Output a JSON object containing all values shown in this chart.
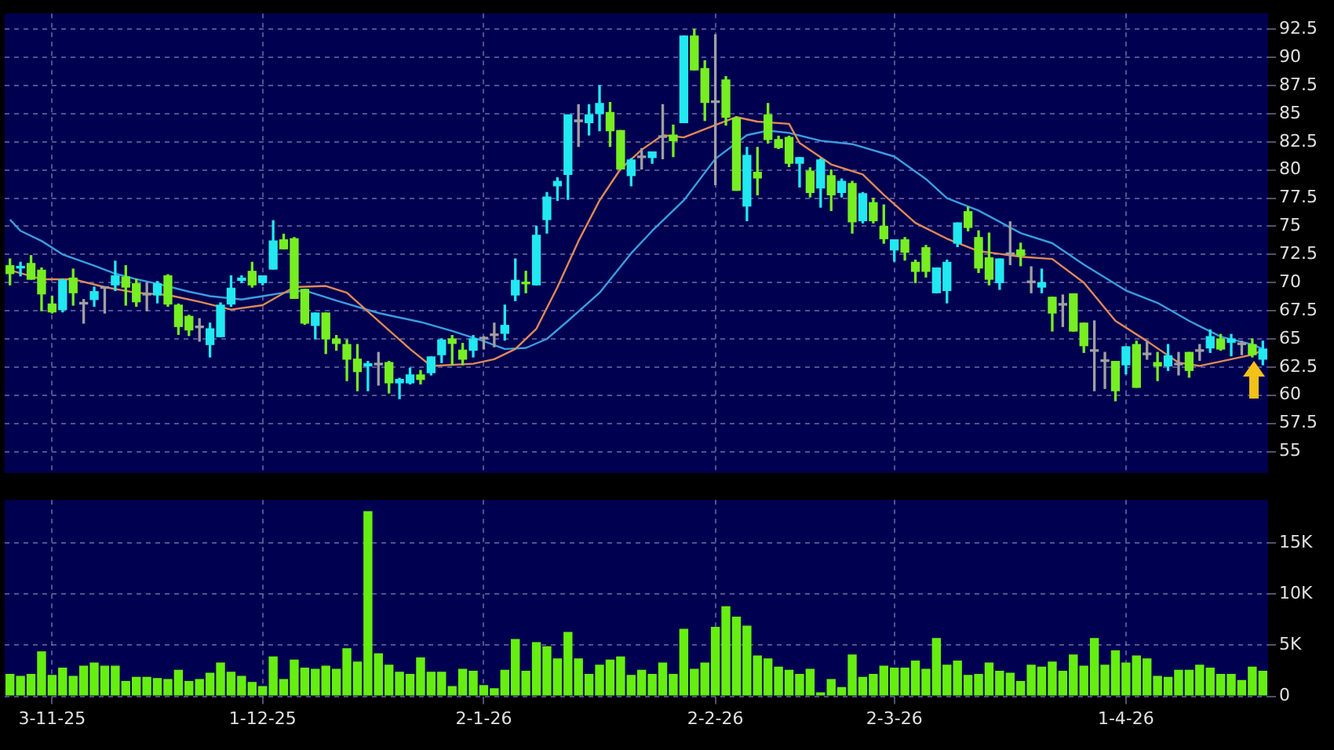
{
  "chart_data": [
    {
      "type": "candlestick",
      "tick_labels": "y",
      "grid": true,
      "categories": [
        null,
        null,
        null,
        null,
        null,
        null,
        null,
        null,
        null,
        null,
        null,
        null,
        null,
        null,
        null,
        null,
        null,
        null,
        null,
        null,
        null,
        null,
        null,
        null,
        null,
        null,
        null,
        null,
        null,
        null,
        null,
        null,
        null,
        null,
        null,
        null,
        null,
        null,
        null,
        null,
        null,
        null,
        null,
        null,
        null,
        null,
        null,
        null,
        null,
        null,
        null,
        null,
        null,
        null,
        null,
        null,
        null,
        null,
        null,
        null,
        null,
        null,
        null,
        null,
        null,
        null,
        null,
        null,
        null,
        null,
        null,
        null,
        null,
        null,
        null,
        null,
        null,
        null,
        null,
        null,
        null,
        null,
        null,
        null,
        null,
        null,
        null,
        null,
        null,
        null,
        null,
        null,
        null,
        null,
        null,
        null,
        null,
        null,
        null,
        null,
        null,
        null,
        null,
        null,
        null,
        null,
        null,
        null,
        null,
        null,
        null,
        null,
        null,
        null,
        null,
        null,
        null,
        null,
        null,
        null
      ],
      "ohlc": [
        [
          71.5,
          72.1,
          69.8,
          70.8
        ],
        [
          71.3,
          71.8,
          70.6,
          71.4
        ],
        [
          71.7,
          72.4,
          70.3,
          70.3
        ],
        [
          71.1,
          71.3,
          67.5,
          69.0
        ],
        [
          68.1,
          68.8,
          67.3,
          67.4
        ],
        [
          67.6,
          70.3,
          67.4,
          70.2
        ],
        [
          70.4,
          71.2,
          68.0,
          69.1
        ],
        [
          68.1,
          68.5,
          66.4,
          68.1
        ],
        [
          68.5,
          69.6,
          67.9,
          69.2
        ],
        [
          69.5,
          69.6,
          67.3,
          69.5
        ],
        [
          69.8,
          71.9,
          69.3,
          70.6
        ],
        [
          70.5,
          71.5,
          68.0,
          69.6
        ],
        [
          69.9,
          70.3,
          67.9,
          68.3
        ],
        [
          68.9,
          70.0,
          67.5,
          68.9
        ],
        [
          68.9,
          70.1,
          68.2,
          69.9
        ],
        [
          70.6,
          70.7,
          67.9,
          68.1
        ],
        [
          68.0,
          68.1,
          65.4,
          66.1
        ],
        [
          67.0,
          67.1,
          65.3,
          65.8
        ],
        [
          66.0,
          66.8,
          64.8,
          66.0
        ],
        [
          64.5,
          66.4,
          63.4,
          65.9
        ],
        [
          65.2,
          68.2,
          65.2,
          68.0
        ],
        [
          68.1,
          70.6,
          67.9,
          69.5
        ],
        [
          70.2,
          70.6,
          70.0,
          70.4
        ],
        [
          71.0,
          71.8,
          69.6,
          69.8
        ],
        [
          70.0,
          70.6,
          69.8,
          70.6
        ],
        [
          71.2,
          75.5,
          71.2,
          73.7
        ],
        [
          73.8,
          74.3,
          73.0,
          73.0
        ],
        [
          73.9,
          74.0,
          68.6,
          68.6
        ],
        [
          69.4,
          69.4,
          66.3,
          66.4
        ],
        [
          66.2,
          67.3,
          65.0,
          67.3
        ],
        [
          67.3,
          67.3,
          63.7,
          65.0
        ],
        [
          65.0,
          65.3,
          64.0,
          64.6
        ],
        [
          64.5,
          64.9,
          61.3,
          63.2
        ],
        [
          63.2,
          64.5,
          60.4,
          62.1
        ],
        [
          62.6,
          63.0,
          60.4,
          62.8
        ],
        [
          62.7,
          63.8,
          60.9,
          62.7
        ],
        [
          62.9,
          63.0,
          60.2,
          61.1
        ],
        [
          61.1,
          61.5,
          59.7,
          61.4
        ],
        [
          61.1,
          62.4,
          61.0,
          61.8
        ],
        [
          61.8,
          62.2,
          61.0,
          61.4
        ],
        [
          62.0,
          63.4,
          61.8,
          63.4
        ],
        [
          63.6,
          65.0,
          62.9,
          64.9
        ],
        [
          65.0,
          65.3,
          62.7,
          64.6
        ],
        [
          64.0,
          64.6,
          62.7,
          63.2
        ],
        [
          64.0,
          65.3,
          63.4,
          65.0
        ],
        [
          65.0,
          65.2,
          64.1,
          65.0
        ],
        [
          65.3,
          66.4,
          64.3,
          65.3
        ],
        [
          65.5,
          68.0,
          64.9,
          66.2
        ],
        [
          68.9,
          72.1,
          68.4,
          70.2
        ],
        [
          70.0,
          71.0,
          69.1,
          69.9
        ],
        [
          69.8,
          75.0,
          69.8,
          74.2
        ],
        [
          75.6,
          78.0,
          74.4,
          77.6
        ],
        [
          78.6,
          79.3,
          77.3,
          79.0
        ],
        [
          79.6,
          84.9,
          77.4,
          84.9
        ],
        [
          84.3,
          85.8,
          82.1,
          84.3
        ],
        [
          84.2,
          85.8,
          83.1,
          84.9
        ],
        [
          85.0,
          87.5,
          83.5,
          85.9
        ],
        [
          85.1,
          86.0,
          82.1,
          83.5
        ],
        [
          83.5,
          83.5,
          80.1,
          80.1
        ],
        [
          79.5,
          81.0,
          78.6,
          80.9
        ],
        [
          81.1,
          81.9,
          80.1,
          81.1
        ],
        [
          81.1,
          81.6,
          80.6,
          81.6
        ],
        [
          82.9,
          85.8,
          81.0,
          82.9
        ],
        [
          83.1,
          84.0,
          81.2,
          82.6
        ],
        [
          84.2,
          91.9,
          84.2,
          91.9
        ],
        [
          91.9,
          92.5,
          88.9,
          88.9
        ],
        [
          89.0,
          89.7,
          84.4,
          86.0
        ],
        [
          86.0,
          92.0,
          78.7,
          86.0
        ],
        [
          88.0,
          88.3,
          84.0,
          84.7
        ],
        [
          84.6,
          84.7,
          78.2,
          78.2
        ],
        [
          76.8,
          82.0,
          75.5,
          81.3
        ],
        [
          79.8,
          82.0,
          77.8,
          79.3
        ],
        [
          84.9,
          85.9,
          82.4,
          82.7
        ],
        [
          82.7,
          83.0,
          81.9,
          82.0
        ],
        [
          82.9,
          83.0,
          80.3,
          80.6
        ],
        [
          80.6,
          81.1,
          78.5,
          81.1
        ],
        [
          79.9,
          80.2,
          77.6,
          78.0
        ],
        [
          78.4,
          81.0,
          76.7,
          80.9
        ],
        [
          79.5,
          80.0,
          76.4,
          77.8
        ],
        [
          78.0,
          79.2,
          77.6,
          79.0
        ],
        [
          78.8,
          79.0,
          74.4,
          75.4
        ],
        [
          75.5,
          78.0,
          75.3,
          77.9
        ],
        [
          77.1,
          77.5,
          75.3,
          75.5
        ],
        [
          75.0,
          76.9,
          73.5,
          73.9
        ],
        [
          72.9,
          73.8,
          71.9,
          73.8
        ],
        [
          73.8,
          74.0,
          72.0,
          72.7
        ],
        [
          71.8,
          72.0,
          70.0,
          71.0
        ],
        [
          73.1,
          73.3,
          70.5,
          71.0
        ],
        [
          69.1,
          71.3,
          69.1,
          71.3
        ],
        [
          69.3,
          72.0,
          68.2,
          71.8
        ],
        [
          73.5,
          75.3,
          73.2,
          75.3
        ],
        [
          76.3,
          76.7,
          74.6,
          74.9
        ],
        [
          74.0,
          74.6,
          70.9,
          71.3
        ],
        [
          72.2,
          74.4,
          69.8,
          70.3
        ],
        [
          70.0,
          72.1,
          69.4,
          72.1
        ],
        [
          72.5,
          75.4,
          71.6,
          72.5
        ],
        [
          72.9,
          73.5,
          71.5,
          72.4
        ],
        [
          70.0,
          71.4,
          69.1,
          70.0
        ],
        [
          69.6,
          71.2,
          69.1,
          70.0
        ],
        [
          68.7,
          68.7,
          65.7,
          67.3
        ],
        [
          68.0,
          68.9,
          66.1,
          68.0
        ],
        [
          69.0,
          69.0,
          65.7,
          65.7
        ],
        [
          66.4,
          66.4,
          63.8,
          64.4
        ],
        [
          63.9,
          66.6,
          60.4,
          63.9
        ],
        [
          63.0,
          63.8,
          60.6,
          63.0
        ],
        [
          63.0,
          63.0,
          59.5,
          60.4
        ],
        [
          62.7,
          64.3,
          61.9,
          64.3
        ],
        [
          64.5,
          64.8,
          60.7,
          60.7
        ],
        [
          63.6,
          64.8,
          63.2,
          63.6
        ],
        [
          62.9,
          63.8,
          61.3,
          62.6
        ],
        [
          62.6,
          64.5,
          62.2,
          63.5
        ],
        [
          62.7,
          63.8,
          61.8,
          62.7
        ],
        [
          63.8,
          63.8,
          61.6,
          62.2
        ],
        [
          63.9,
          64.5,
          63.1,
          63.9
        ],
        [
          64.2,
          65.8,
          63.8,
          65.2
        ],
        [
          65.0,
          65.4,
          64.0,
          64.1
        ],
        [
          64.7,
          65.4,
          63.5,
          65.0
        ],
        [
          64.5,
          64.8,
          63.6,
          64.5
        ],
        [
          64.5,
          65.0,
          63.4,
          63.6
        ],
        [
          63.2,
          64.8,
          62.7,
          64.1
        ]
      ],
      "colors": [
        "#77ee22",
        "#22e8f0",
        "#77ee22",
        "#77ee22",
        "#77ee22",
        "#22e8f0",
        "#77ee22",
        "#a0a0a0",
        "#22e8f0",
        "#a0a0a0",
        "#22e8f0",
        "#77ee22",
        "#77ee22",
        "#a0a0a0",
        "#22e8f0",
        "#77ee22",
        "#77ee22",
        "#77ee22",
        "#a0a0a0",
        "#22e8f0",
        "#22e8f0",
        "#22e8f0",
        "#22e8f0",
        "#77ee22",
        "#22e8f0",
        "#22e8f0",
        "#77ee22",
        "#77ee22",
        "#77ee22",
        "#22e8f0",
        "#77ee22",
        "#77ee22",
        "#77ee22",
        "#77ee22",
        "#22e8f0",
        "#a0a0a0",
        "#77ee22",
        "#22e8f0",
        "#22e8f0",
        "#77ee22",
        "#22e8f0",
        "#22e8f0",
        "#77ee22",
        "#77ee22",
        "#22e8f0",
        "#a0a0a0",
        "#a0a0a0",
        "#22e8f0",
        "#22e8f0",
        "#77ee22",
        "#22e8f0",
        "#22e8f0",
        "#22e8f0",
        "#22e8f0",
        "#a0a0a0",
        "#22e8f0",
        "#22e8f0",
        "#77ee22",
        "#77ee22",
        "#22e8f0",
        "#a0a0a0",
        "#22e8f0",
        "#a0a0a0",
        "#77ee22",
        "#22e8f0",
        "#77ee22",
        "#77ee22",
        "#a0a0a0",
        "#77ee22",
        "#77ee22",
        "#22e8f0",
        "#77ee22",
        "#77ee22",
        "#77ee22",
        "#77ee22",
        "#22e8f0",
        "#77ee22",
        "#22e8f0",
        "#77ee22",
        "#22e8f0",
        "#77ee22",
        "#22e8f0",
        "#77ee22",
        "#77ee22",
        "#22e8f0",
        "#77ee22",
        "#77ee22",
        "#77ee22",
        "#22e8f0",
        "#22e8f0",
        "#22e8f0",
        "#77ee22",
        "#77ee22",
        "#77ee22",
        "#22e8f0",
        "#a0a0a0",
        "#77ee22",
        "#a0a0a0",
        "#22e8f0",
        "#77ee22",
        "#a0a0a0",
        "#77ee22",
        "#77ee22",
        "#a0a0a0",
        "#a0a0a0",
        "#77ee22",
        "#22e8f0",
        "#77ee22",
        "#a0a0a0",
        "#77ee22",
        "#22e8f0",
        "#a0a0a0",
        "#77ee22",
        "#a0a0a0",
        "#22e8f0",
        "#77ee22",
        "#22e8f0",
        "#a0a0a0",
        "#77ee22",
        "#22e8f0"
      ],
      "series": [
        {
          "type": "line",
          "color": "#e08a55",
          "values": [
            71.1,
            null,
            null,
            70.3,
            null,
            null,
            70.3,
            null,
            null,
            69.6,
            null,
            null,
            69.1,
            null,
            null,
            68.9,
            null,
            null,
            68.3,
            null,
            null,
            67.6,
            null,
            null,
            68.0,
            null,
            null,
            69.6,
            null,
            null,
            69.7,
            null,
            69.1,
            null,
            null,
            66.6,
            null,
            null,
            64.1,
            null,
            62.6,
            null,
            null,
            null,
            62.8,
            null,
            63.2,
            null,
            64.1,
            null,
            65.9,
            null,
            69.6,
            null,
            73.7,
            null,
            77.3,
            null,
            80.1,
            null,
            81.8,
            null,
            83.1,
            null,
            82.9,
            null,
            null,
            84.0,
            null,
            84.7,
            null,
            84.3,
            null,
            null,
            84.1,
            82.4,
            null,
            null,
            80.5,
            null,
            null,
            79.6,
            null,
            77.8,
            null,
            null,
            75.3,
            null,
            null,
            73.9,
            null,
            null,
            72.8,
            null,
            null,
            null,
            72.3,
            null,
            null,
            72.1,
            null,
            null,
            70.0,
            null,
            null,
            66.6,
            null,
            null,
            64.8,
            null,
            null,
            62.9,
            null,
            62.6,
            null,
            null,
            63.2,
            null,
            63.6,
            64.0
          ]
        },
        {
          "type": "line",
          "color": "#3a9ee0",
          "values": [
            75.6,
            74.6,
            null,
            73.7,
            null,
            72.5,
            null,
            null,
            71.5,
            null,
            70.8,
            null,
            70.3,
            null,
            69.9,
            null,
            null,
            69.2,
            null,
            68.8,
            null,
            null,
            68.5,
            null,
            68.8,
            null,
            69.1,
            null,
            69.3,
            null,
            null,
            68.4,
            null,
            null,
            null,
            67.3,
            null,
            null,
            null,
            66.5,
            null,
            null,
            65.7,
            null,
            null,
            64.8,
            null,
            64.1,
            null,
            64.2,
            null,
            65.0,
            null,
            66.6,
            null,
            null,
            69.1,
            null,
            null,
            72.6,
            null,
            74.6,
            null,
            null,
            77.3,
            null,
            null,
            81.0,
            null,
            null,
            83.1,
            null,
            83.5,
            null,
            83.3,
            null,
            null,
            82.6,
            null,
            null,
            82.3,
            null,
            null,
            null,
            81.2,
            null,
            null,
            79.2,
            null,
            77.5,
            null,
            null,
            76.4,
            null,
            null,
            null,
            74.4,
            null,
            null,
            73.5,
            null,
            null,
            71.6,
            null,
            null,
            null,
            69.3,
            null,
            null,
            68.2,
            null,
            null,
            66.6,
            null,
            null,
            65.2,
            null,
            null,
            64.5,
            64.1
          ]
        }
      ],
      "ylim": [
        53.1,
        93.9
      ],
      "yticks": [
        55,
        57.5,
        60,
        62.5,
        65,
        67.5,
        70,
        72.5,
        75,
        77.5,
        80,
        82.5,
        85,
        87.5,
        90,
        92.5
      ]
    },
    {
      "type": "bar",
      "grid": true,
      "categories": [
        null,
        null,
        null,
        null,
        "3-11-25",
        null,
        null,
        null,
        null,
        null,
        null,
        null,
        null,
        null,
        null,
        null,
        null,
        null,
        null,
        null,
        null,
        null,
        null,
        null,
        "1-12-25",
        null,
        null,
        null,
        null,
        null,
        null,
        null,
        null,
        null,
        null,
        null,
        null,
        null,
        null,
        null,
        null,
        null,
        null,
        null,
        null,
        "2-1-26",
        null,
        null,
        null,
        null,
        null,
        null,
        null,
        null,
        null,
        null,
        null,
        null,
        null,
        null,
        null,
        null,
        null,
        null,
        null,
        null,
        null,
        "2-2-26",
        null,
        null,
        null,
        null,
        null,
        null,
        null,
        null,
        null,
        null,
        null,
        null,
        null,
        null,
        null,
        null,
        "2-3-26",
        null,
        null,
        null,
        null,
        null,
        null,
        null,
        null,
        null,
        null,
        null,
        null,
        null,
        null,
        null,
        null,
        null,
        null,
        null,
        null,
        null,
        "1-4-26",
        null,
        null,
        null,
        null,
        null,
        null,
        null,
        null,
        null,
        null,
        null,
        null,
        null
      ],
      "series": [
        {
          "color": "#66ee11",
          "values": [
            2200,
            2000,
            2200,
            4400,
            2100,
            2800,
            2000,
            3000,
            3300,
            3000,
            3000,
            1500,
            1900,
            1900,
            1800,
            1700,
            2600,
            1500,
            1700,
            2300,
            3300,
            2400,
            2000,
            1400,
            1000,
            3900,
            1700,
            3600,
            2800,
            2700,
            3000,
            2700,
            4700,
            3400,
            18100,
            4200,
            3100,
            2400,
            2200,
            3800,
            2400,
            2400,
            1000,
            2700,
            2500,
            1100,
            800,
            2600,
            5600,
            2500,
            5300,
            4900,
            3700,
            6300,
            3700,
            2200,
            3100,
            3600,
            3900,
            2100,
            2600,
            2200,
            3300,
            2200,
            6600,
            2700,
            3300,
            6800,
            8800,
            7800,
            6900,
            4000,
            3700,
            2900,
            2600,
            2200,
            2700,
            400,
            1700,
            900,
            4100,
            1900,
            2200,
            3000,
            2800,
            2800,
            3500,
            2700,
            5700,
            3100,
            3500,
            2100,
            2200,
            3300,
            2500,
            2300,
            1500,
            3100,
            2900,
            3400,
            2500,
            4100,
            3000,
            5700,
            3100,
            4500,
            3300,
            4000,
            3700,
            2000,
            1900,
            2600,
            2600,
            3100,
            2800,
            2200,
            2200,
            1600,
            2900,
            2500
          ]
        }
      ],
      "ylim": [
        0,
        19200
      ],
      "yticks": [
        0,
        {
          "value": 5000,
          "label": "5K"
        },
        {
          "value": 10000,
          "label": "10K"
        },
        {
          "value": 15000,
          "label": "15K"
        }
      ]
    }
  ]
}
